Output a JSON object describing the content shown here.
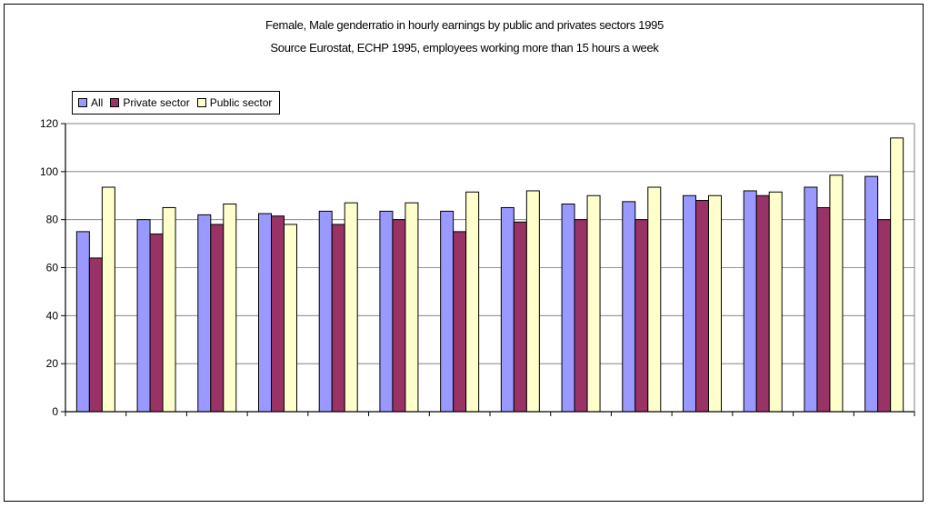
{
  "chart_data": {
    "type": "bar",
    "title": "Female, Male genderratio in hourly earnings by public and privates sectors 1995",
    "subtitle": "Source Eurostat, ECHP 1995, employees working more than 15 hours a week",
    "categories": [
      "",
      "",
      "",
      "",
      "",
      "",
      "",
      "",
      "",
      "",
      "",
      "",
      "",
      ""
    ],
    "series": [
      {
        "name": "All",
        "color": "#9999ff",
        "values": [
          75,
          80,
          82,
          82.5,
          83.5,
          83.5,
          83.5,
          85,
          86.5,
          87.5,
          90,
          92,
          93.5,
          98
        ]
      },
      {
        "name": "Private sector",
        "color": "#993366",
        "values": [
          64,
          74,
          78,
          81.5,
          78,
          80,
          75,
          79,
          80,
          80,
          88,
          90,
          85,
          80
        ]
      },
      {
        "name": "Public sector",
        "color": "#ffffcc",
        "values": [
          93.5,
          85,
          86.5,
          78,
          87,
          87,
          91.5,
          92,
          90,
          93.5,
          90,
          91.5,
          98.5,
          114
        ]
      }
    ],
    "ylim": [
      0,
      120
    ],
    "yticks": [
      0,
      20,
      40,
      60,
      80,
      100,
      120
    ],
    "xlabel": "",
    "ylabel": "",
    "grid": true,
    "legend_position": "top-left"
  }
}
